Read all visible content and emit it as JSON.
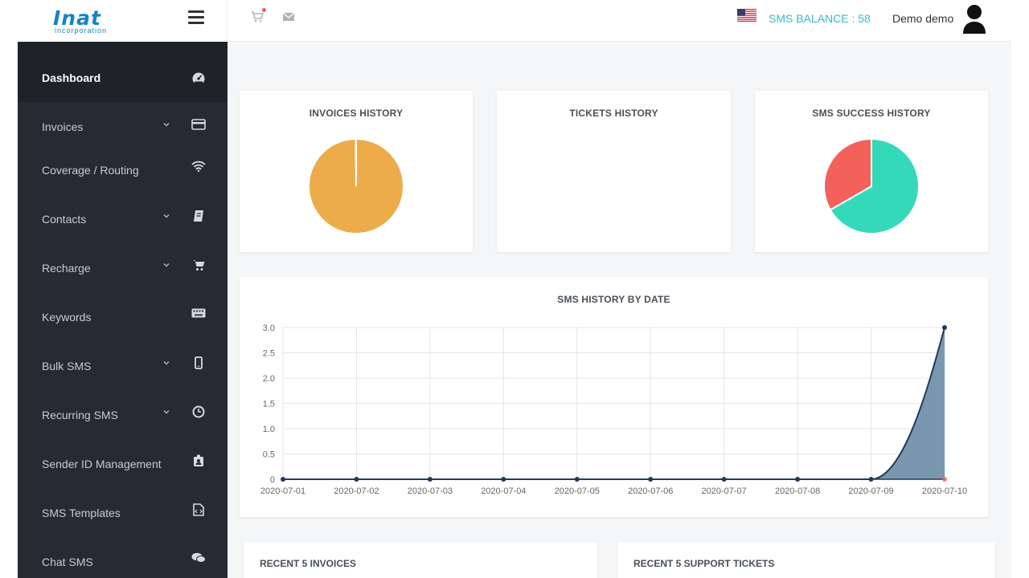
{
  "header": {
    "logo_text": "Inat",
    "logo_subtext": "incorporation",
    "sms_balance": "SMS BALANCE : 58",
    "username": "Demo demo"
  },
  "icons": {
    "menu": "hamburger-icon",
    "cart": "cart-icon",
    "mail": "envelope-icon",
    "flag": "us-flag-icon",
    "user": "user-avatar-icon"
  },
  "sidebar": {
    "items": [
      {
        "label": "Dashboard",
        "icon": "dashboard-icon",
        "active": true,
        "has_submenu": false
      },
      {
        "label": "Invoices",
        "icon": "credit-card-icon",
        "active": false,
        "has_submenu": true
      },
      {
        "label": "Coverage / Routing",
        "icon": "wifi-icon",
        "active": false,
        "has_submenu": false
      },
      {
        "label": "Contacts",
        "icon": "address-book-icon",
        "active": false,
        "has_submenu": true
      },
      {
        "label": "Recharge",
        "icon": "cart-icon",
        "active": false,
        "has_submenu": true
      },
      {
        "label": "Keywords",
        "icon": "keyboard-icon",
        "active": false,
        "has_submenu": false
      },
      {
        "label": "Bulk SMS",
        "icon": "mobile-icon",
        "active": false,
        "has_submenu": true
      },
      {
        "label": "Recurring SMS",
        "icon": "clock-icon",
        "active": false,
        "has_submenu": true
      },
      {
        "label": "Sender ID Management",
        "icon": "id-badge-icon",
        "active": false,
        "has_submenu": false
      },
      {
        "label": "SMS Templates",
        "icon": "file-code-icon",
        "active": false,
        "has_submenu": false
      },
      {
        "label": "Chat SMS",
        "icon": "chat-icon",
        "active": false,
        "has_submenu": false
      }
    ]
  },
  "cards": {
    "invoices_history": "INVOICES HISTORY",
    "tickets_history": "TICKETS HISTORY",
    "sms_success_history": "SMS SUCCESS HISTORY",
    "sms_history_by_date": "SMS HISTORY BY DATE",
    "recent_invoices": "RECENT 5 INVOICES",
    "recent_tickets": "RECENT 5 SUPPORT TICKETS"
  },
  "colors": {
    "sidebar_bg": "#252a33",
    "accent": "#36b9cc",
    "pie_orange": "#edab4a",
    "pie_teal": "#34d9b9",
    "pie_red": "#f4605a",
    "line_fill": "#7491ab",
    "line_stroke": "#1f3a5f"
  },
  "chart_data": [
    {
      "type": "pie",
      "title": "INVOICES HISTORY",
      "values": [
        0.999,
        0.001
      ],
      "colors": [
        "#edab4a",
        "#ffffff"
      ]
    },
    {
      "type": "pie",
      "title": "SMS SUCCESS HISTORY",
      "values": [
        0.667,
        0.333
      ],
      "colors": [
        "#34d9b9",
        "#f4605a"
      ]
    },
    {
      "type": "area",
      "title": "SMS HISTORY BY DATE",
      "x": [
        "2020-07-01",
        "2020-07-02",
        "2020-07-03",
        "2020-07-04",
        "2020-07-05",
        "2020-07-06",
        "2020-07-07",
        "2020-07-08",
        "2020-07-09",
        "2020-07-10"
      ],
      "series": [
        {
          "values": [
            0,
            0,
            0,
            0,
            0,
            0,
            0,
            0,
            0,
            3
          ],
          "color": "#1f3a5f"
        },
        {
          "values": [
            0,
            0,
            0,
            0,
            0,
            0,
            0,
            0,
            0,
            0
          ],
          "color": "#f4605a"
        }
      ],
      "yticks": [
        "0",
        "0.5",
        "1.0",
        "1.5",
        "2.0",
        "2.5",
        "3.0"
      ],
      "ylim": [
        0,
        3
      ],
      "grid": true
    }
  ]
}
